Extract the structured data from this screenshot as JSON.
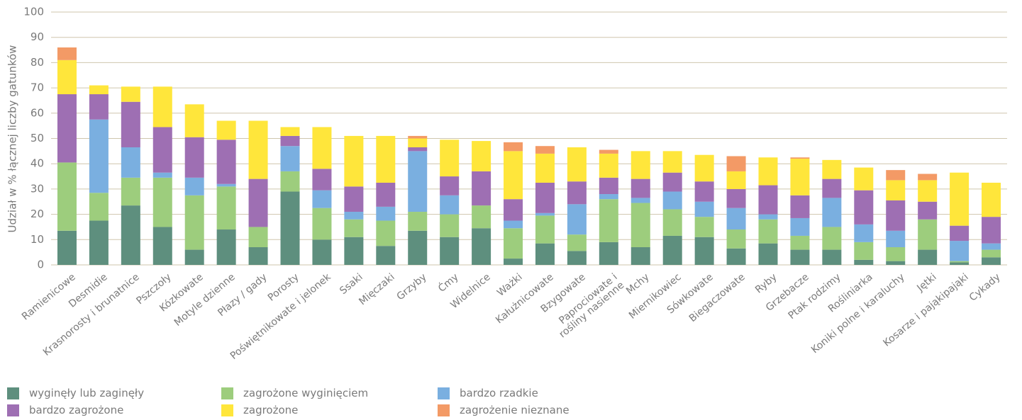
{
  "chart_data": {
    "type": "stacked_bar",
    "y_label": "Udział w % łącznej liczby gatunków",
    "categories": [
      "Ramienicowe",
      "Desmidie",
      "Krasnorosty i brunatnice",
      "Pszczoły",
      "Kózkowate",
      "Motyle dzienne",
      "Płazy / gady",
      "Porosty",
      "Poświętnikowate i jelonek",
      "Ssaki",
      "Mięczaki",
      "Grzyby",
      "Ćmy",
      "Widelnice",
      "Ważki",
      "Kałużnicowate",
      "Bzygowate",
      "Paprociowate i\nrośliny nasienne",
      "Mchy",
      "Miernikowiec",
      "Sówkowate",
      "Biegaczowate",
      "Ryby",
      "Grzebacze",
      "Ptak rodzimy",
      "Rośliniarka",
      "Koniki polne i karaluchy",
      "Jętki",
      "Kosarze i pająkipająki",
      "Cykady"
    ],
    "series": [
      {
        "name": "wyginęły lub zaginęły",
        "color": "#5e8f7e",
        "values": [
          13.5,
          17.5,
          23.5,
          15,
          6,
          14,
          7,
          29,
          10,
          11,
          7.5,
          13.5,
          11,
          14.5,
          2.5,
          8.5,
          5.5,
          9,
          7,
          11.5,
          11,
          6.5,
          8.5,
          6,
          6,
          2,
          1.5,
          6,
          1,
          3
        ]
      },
      {
        "name": "zagrożone wyginięciem",
        "color": "#9dcd7d",
        "values": [
          27,
          11,
          11,
          19.5,
          21.5,
          17,
          8,
          8,
          12.5,
          7,
          10,
          7.5,
          9,
          9,
          12,
          11,
          6.5,
          17,
          17.5,
          10.5,
          8,
          7.5,
          9.5,
          5.5,
          9,
          7,
          5.5,
          12,
          0.5,
          3
        ]
      },
      {
        "name": "bardzo rzadkie",
        "color": "#7aafe0",
        "values": [
          0,
          29,
          12,
          2,
          7,
          1,
          0,
          10,
          7,
          3,
          5.5,
          24,
          7.5,
          0,
          3,
          1,
          12,
          2,
          2,
          7,
          6,
          8.5,
          2,
          7,
          11.5,
          7,
          6.5,
          0,
          8,
          2.5
        ]
      },
      {
        "name": "bardzo zagrożone",
        "color": "#9e6fb3",
        "values": [
          27,
          10,
          18,
          18,
          16,
          17.5,
          19,
          4,
          8.5,
          10,
          9.5,
          1.5,
          7.5,
          13.5,
          8.5,
          12,
          9,
          6.5,
          7.5,
          7.5,
          8,
          7.5,
          11.5,
          9,
          7.5,
          13.5,
          12,
          7,
          6,
          10.5
        ]
      },
      {
        "name": "zagrożone",
        "color": "#ffe63b",
        "values": [
          13.5,
          3.5,
          6,
          16,
          13,
          7.5,
          23,
          3.5,
          16.5,
          20,
          18.5,
          3.5,
          14.5,
          12,
          19,
          11.5,
          13.5,
          9.5,
          11,
          8.5,
          10.5,
          7,
          11,
          14.5,
          7.5,
          9,
          8,
          8.5,
          21,
          13.5
        ]
      },
      {
        "name": "zagrożenie nieznane",
        "color": "#f39a66",
        "values": [
          5,
          0,
          0,
          0,
          0,
          0,
          0,
          0,
          0,
          0,
          0,
          1,
          0,
          0,
          3.5,
          3,
          0,
          1.5,
          0,
          0,
          0,
          6,
          0,
          0.5,
          0,
          0,
          4,
          2.5,
          0,
          0
        ]
      }
    ],
    "ylim": [
      0,
      100
    ],
    "yticks": [
      0,
      10,
      20,
      30,
      40,
      50,
      60,
      70,
      80,
      90,
      100
    ],
    "grid": true
  }
}
